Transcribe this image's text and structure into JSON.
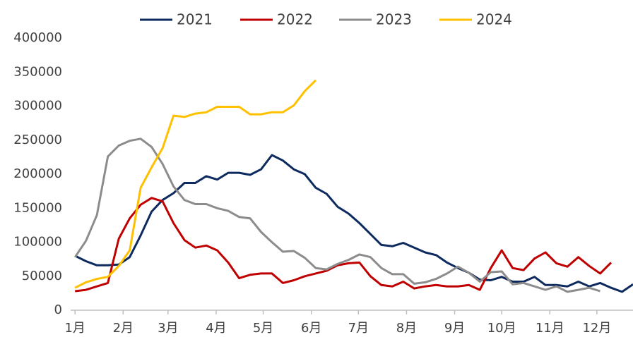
{
  "chart_data": {
    "type": "line",
    "x": [
      1,
      2,
      3,
      4,
      5,
      6,
      7,
      8,
      9,
      10,
      11,
      12,
      13,
      14,
      15,
      16,
      17,
      18,
      19,
      20,
      21,
      22,
      23,
      24,
      25,
      26,
      27,
      28,
      29,
      30,
      31,
      32,
      33,
      34,
      35,
      36,
      37,
      38,
      39,
      40,
      41,
      42,
      43,
      44,
      45,
      46,
      47,
      48,
      49,
      50,
      51,
      52
    ],
    "xlim": [
      0.6,
      52
    ],
    "xticks": [
      {
        "value": 1,
        "label": "1月"
      },
      {
        "value": 5.4,
        "label": "2月"
      },
      {
        "value": 9.5,
        "label": "3月"
      },
      {
        "value": 13.9,
        "label": "4月"
      },
      {
        "value": 18.2,
        "label": "5月"
      },
      {
        "value": 22.6,
        "label": "6月"
      },
      {
        "value": 26.9,
        "label": "7月"
      },
      {
        "value": 31.3,
        "label": "8月"
      },
      {
        "value": 35.7,
        "label": "9月"
      },
      {
        "value": 40,
        "label": "10月"
      },
      {
        "value": 44.4,
        "label": "11月"
      },
      {
        "value": 48.7,
        "label": "12月"
      }
    ],
    "ylim": [
      0,
      400000
    ],
    "yticks": [
      0,
      50000,
      100000,
      150000,
      200000,
      250000,
      300000,
      350000,
      400000
    ],
    "grid": false,
    "legend": "top",
    "series": [
      {
        "name": "2021",
        "color": "#0d2a5e",
        "values": [
          80000,
          72000,
          66000,
          66000,
          67000,
          78000,
          110000,
          145000,
          162000,
          172000,
          187000,
          187000,
          197000,
          192000,
          202000,
          202000,
          199000,
          207000,
          228000,
          220000,
          207000,
          200000,
          180000,
          171000,
          152000,
          142000,
          128000,
          112000,
          96000,
          94000,
          99000,
          92000,
          85000,
          81000,
          70000,
          62000,
          55000,
          45000,
          44000,
          49000,
          42000,
          42000,
          49000,
          37000,
          37000,
          35000,
          42000,
          35000,
          40000,
          33000,
          27000,
          38000
        ]
      },
      {
        "name": "2022",
        "color": "#c00000",
        "values": [
          28000,
          30000,
          35000,
          40000,
          105000,
          135000,
          155000,
          165000,
          160000,
          128000,
          103000,
          92000,
          95000,
          88000,
          70000,
          47000,
          52000,
          54000,
          54000,
          40000,
          44000,
          50000,
          54000,
          58000,
          66000,
          69000,
          70000,
          50000,
          37000,
          35000,
          42000,
          32000,
          35000,
          37000,
          35000,
          35000,
          37000,
          30000,
          62000,
          88000,
          62000,
          59000,
          76000,
          85000,
          69000,
          64000,
          78000,
          65000,
          54000,
          70000,
          null,
          null
        ]
      },
      {
        "name": "2023",
        "color": "#8c8c8c",
        "values": [
          78000,
          102000,
          140000,
          226000,
          242000,
          249000,
          252000,
          240000,
          215000,
          182000,
          162000,
          156000,
          156000,
          150000,
          146000,
          137000,
          135000,
          115000,
          100000,
          86000,
          87000,
          77000,
          62000,
          60000,
          68000,
          74000,
          82000,
          78000,
          62000,
          53000,
          53000,
          39000,
          41000,
          46000,
          54000,
          64000,
          55000,
          42000,
          56000,
          57000,
          38000,
          40000,
          35000,
          30000,
          35000,
          27000,
          30000,
          33000,
          28000,
          null,
          null,
          null
        ]
      },
      {
        "name": "2024",
        "color": "#ffc000",
        "values": [
          33000,
          41000,
          46000,
          49000,
          65000,
          88000,
          180000,
          210000,
          238000,
          286000,
          284000,
          289000,
          291000,
          299000,
          299000,
          299000,
          288000,
          288000,
          291000,
          291000,
          301000,
          322000,
          338000,
          null,
          null,
          null,
          null,
          null,
          null,
          null,
          null,
          null,
          null,
          null,
          null,
          null,
          null,
          null,
          null,
          null,
          null,
          null,
          null,
          null,
          null,
          null,
          null,
          null,
          null,
          null,
          null,
          null
        ]
      }
    ]
  }
}
